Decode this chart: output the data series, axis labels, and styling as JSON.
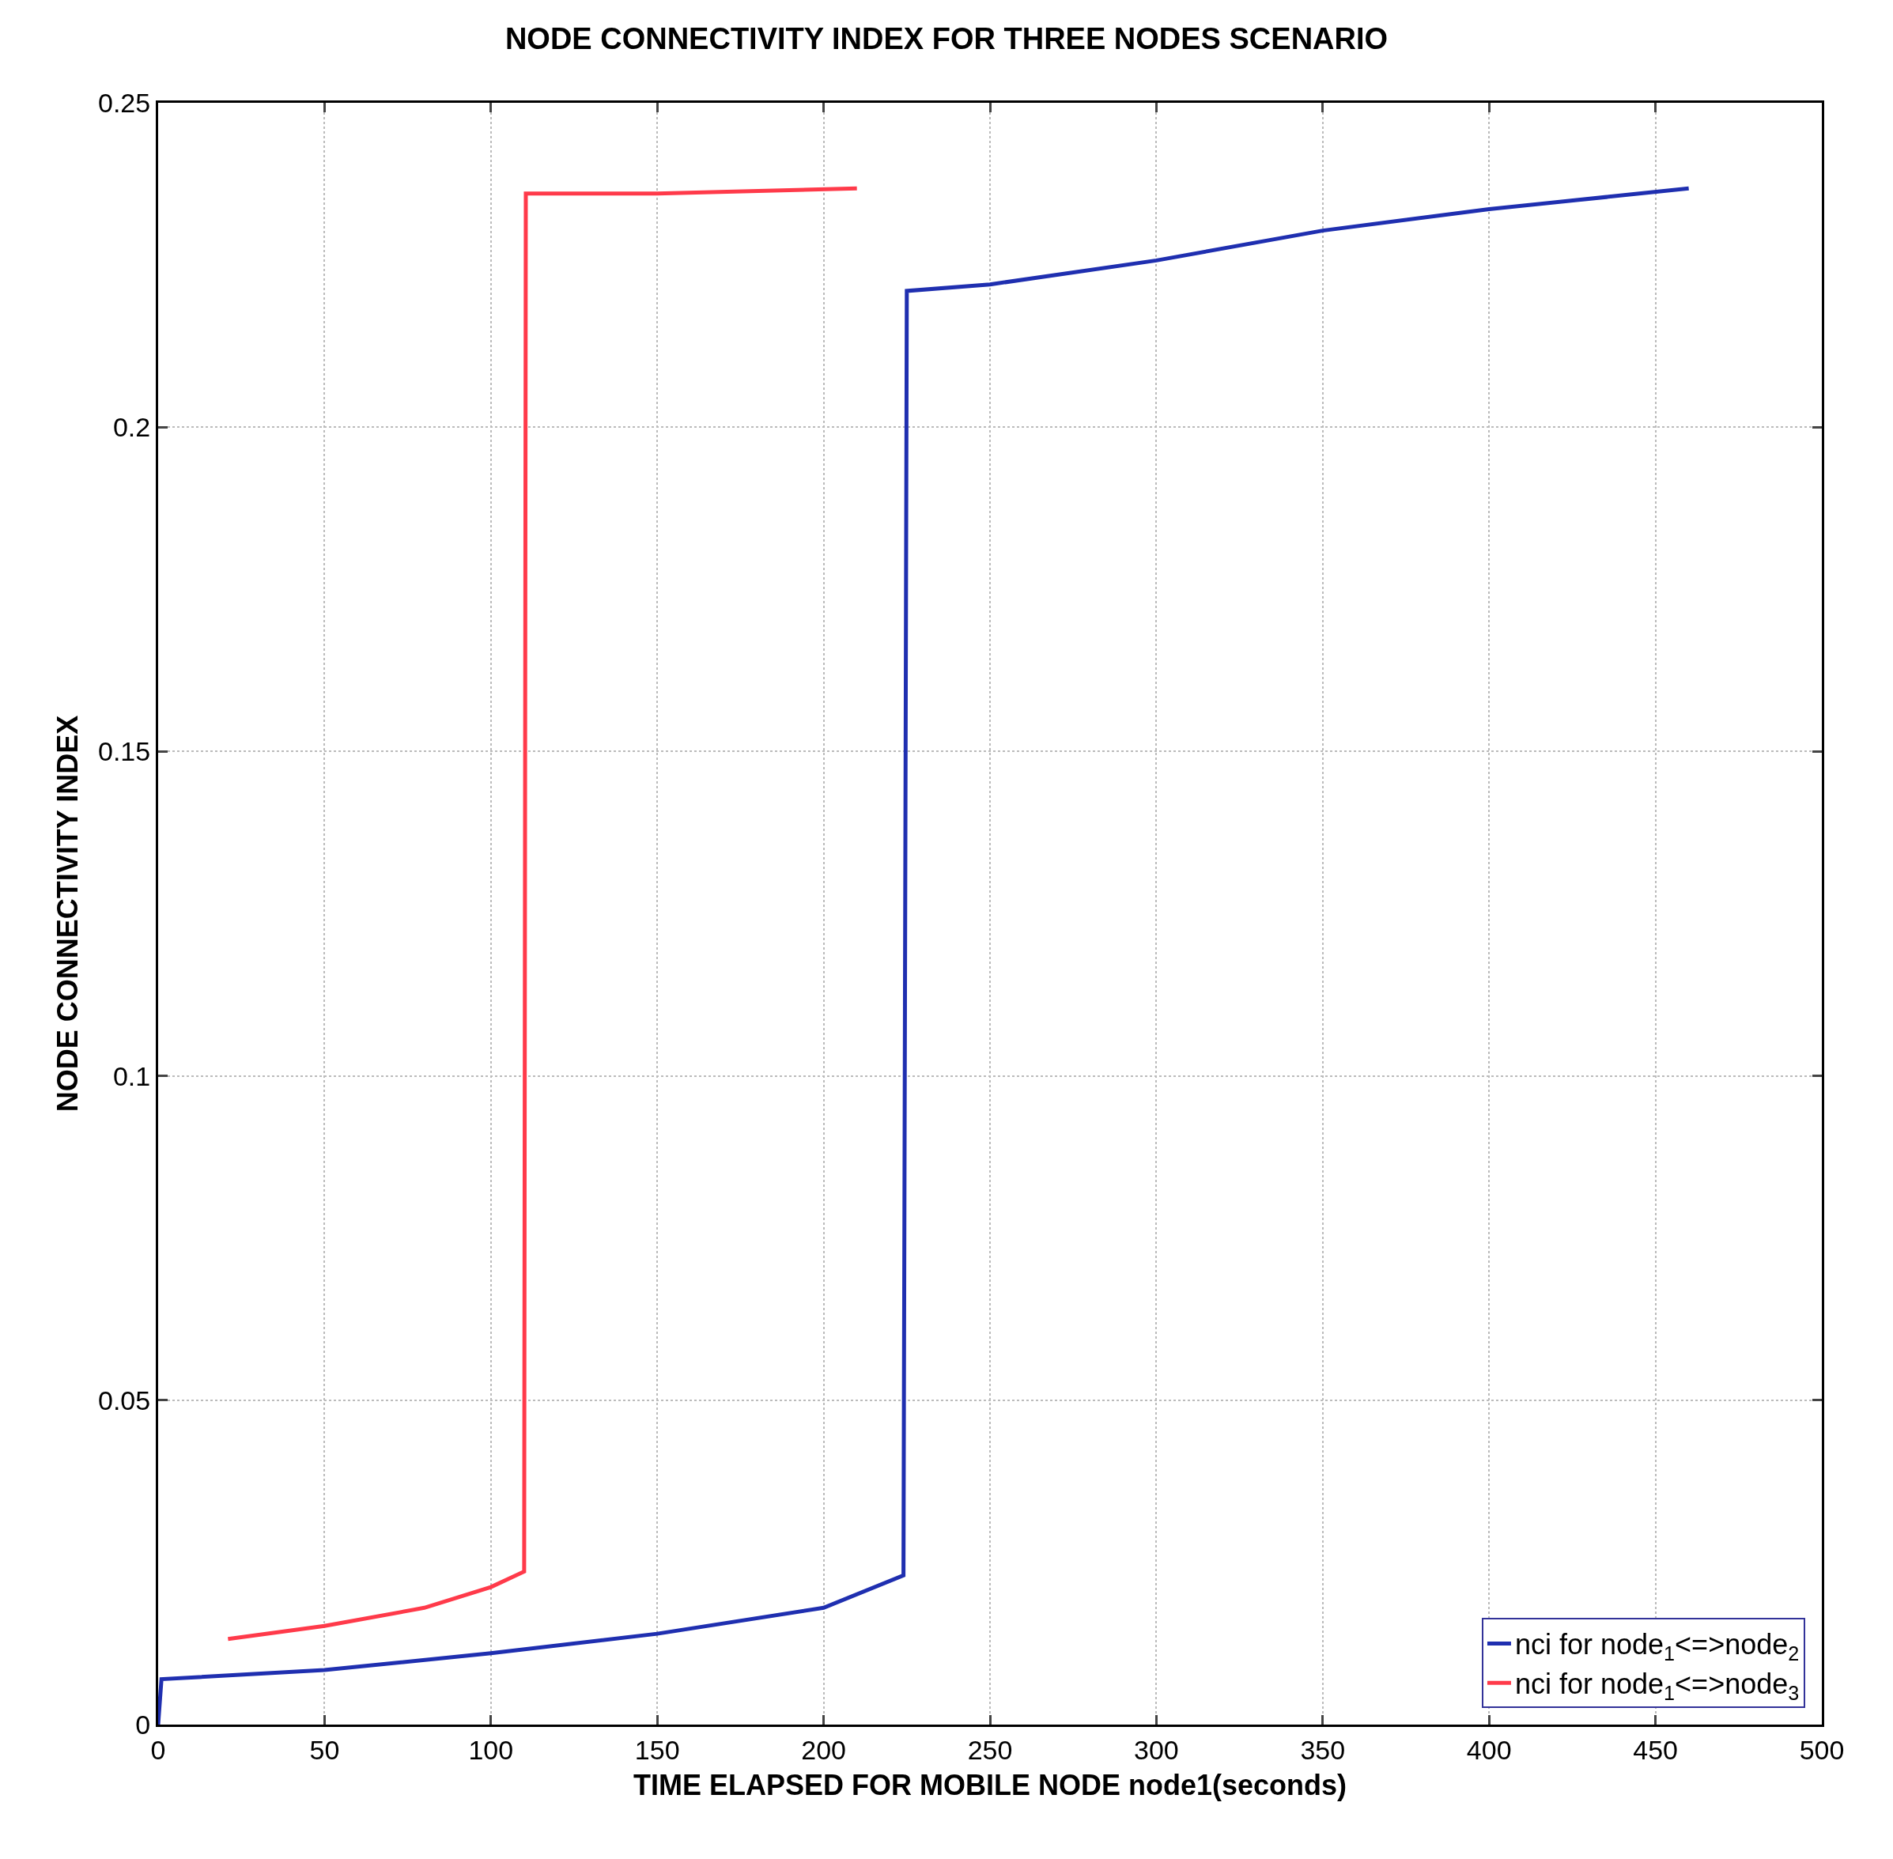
{
  "chart_data": {
    "type": "line",
    "title": "NODE CONNECTIVITY INDEX FOR THREE NODES SCENARIO",
    "xlabel": "TIME ELAPSED FOR MOBILE NODE node1(seconds)",
    "ylabel": "NODE CONNECTIVITY INDEX",
    "xlim": [
      0,
      500
    ],
    "xticks": [
      0,
      50,
      100,
      150,
      200,
      250,
      300,
      350,
      400,
      450,
      500
    ],
    "ylim": [
      0,
      0.25
    ],
    "yticks": [
      0,
      0.05,
      0.1,
      0.15,
      0.2,
      0.25
    ],
    "grid": true,
    "legend": "bottom right",
    "line_style": "solid",
    "series": [
      {
        "name": "nci for node$_{1}$<=>node$_{2}$",
        "color": "#1f2fb0",
        "x": [
          0,
          1,
          50,
          100,
          150,
          200,
          224,
          225,
          250,
          300,
          350,
          400,
          460
        ],
        "values": [
          0,
          0.007,
          0.0084,
          0.011,
          0.014,
          0.018,
          0.023,
          0.221,
          0.222,
          0.2257,
          0.2303,
          0.2336,
          0.2368
        ]
      },
      {
        "name": "nci for node$_{1}$<=>node$_{3}$",
        "color": "#ff3a4a",
        "x": [
          21,
          50,
          80,
          100,
          110,
          110.5,
          150,
          210
        ],
        "values": [
          0.0132,
          0.0152,
          0.018,
          0.0212,
          0.0236,
          0.236,
          0.236,
          0.2368
        ]
      }
    ]
  }
}
